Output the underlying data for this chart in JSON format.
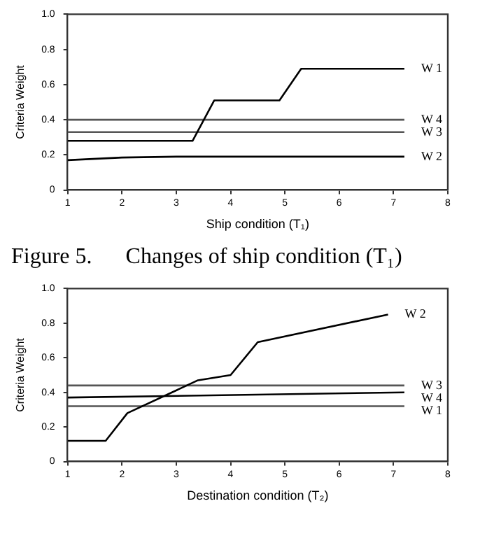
{
  "chart_data": [
    {
      "type": "line",
      "xlabel": "Ship condition (T₁)",
      "ylabel": "Criteria Weight",
      "xlim": [
        1,
        8
      ],
      "xticks": [
        1,
        2,
        3,
        4,
        5,
        6,
        7,
        8
      ],
      "ylim": [
        0,
        1
      ],
      "yticks": [
        {
          "value": 0,
          "label": "0"
        },
        {
          "value": 0.2,
          "label": "0.2"
        },
        {
          "value": 0.4,
          "label": "0.4"
        },
        {
          "value": 0.6,
          "label": "0.6"
        },
        {
          "value": 0.8,
          "label": "0.8"
        },
        {
          "value": 1,
          "label": "1.0"
        }
      ],
      "grid": false,
      "legend": false,
      "marker": "none",
      "annotations": [
        "Figure 5.      Changes of ship condition (T₁)"
      ],
      "series": [
        {
          "name": "W 1",
          "color": "#000000",
          "x": [
            1,
            3.3,
            3.7,
            4.9,
            5.3,
            7.2
          ],
          "values": [
            0.28,
            0.28,
            0.51,
            0.51,
            0.69,
            0.69
          ]
        },
        {
          "name": "W 4",
          "color": "#555555",
          "x": [
            1,
            7.2
          ],
          "values": [
            0.4,
            0.4
          ]
        },
        {
          "name": "W 3",
          "color": "#555555",
          "x": [
            1,
            7.2
          ],
          "values": [
            0.33,
            0.33
          ]
        },
        {
          "name": "W 2",
          "color": "#000000",
          "x": [
            1,
            2,
            3,
            7.2
          ],
          "values": [
            0.17,
            0.185,
            0.19,
            0.19
          ]
        }
      ]
    },
    {
      "type": "line",
      "xlabel": "Destination condition (T₂)",
      "ylabel": "Criteria Weight",
      "xlim": [
        1,
        8
      ],
      "xticks": [
        1,
        2,
        3,
        4,
        5,
        6,
        7,
        8
      ],
      "ylim": [
        0,
        1
      ],
      "yticks": [
        {
          "value": 0,
          "label": "0"
        },
        {
          "value": 0.2,
          "label": "0.2"
        },
        {
          "value": 0.4,
          "label": "0.4"
        },
        {
          "value": 0.6,
          "label": "0.6"
        },
        {
          "value": 0.8,
          "label": "0.8"
        },
        {
          "value": 1,
          "label": "1.0"
        }
      ],
      "grid": false,
      "legend": false,
      "marker": "none",
      "series": [
        {
          "name": "W 2",
          "color": "#000000",
          "x": [
            1,
            1.7,
            2.1,
            3.4,
            4.0,
            4.5,
            6.9
          ],
          "values": [
            0.12,
            0.12,
            0.28,
            0.47,
            0.5,
            0.69,
            0.85
          ]
        },
        {
          "name": "W 3",
          "color": "#555555",
          "x": [
            1,
            7.2
          ],
          "values": [
            0.44,
            0.44
          ]
        },
        {
          "name": "W 4",
          "color": "#000000",
          "x": [
            1,
            7.2
          ],
          "values": [
            0.37,
            0.4
          ]
        },
        {
          "name": "W 1",
          "color": "#555555",
          "x": [
            1,
            7.2
          ],
          "values": [
            0.32,
            0.32
          ]
        }
      ]
    }
  ]
}
